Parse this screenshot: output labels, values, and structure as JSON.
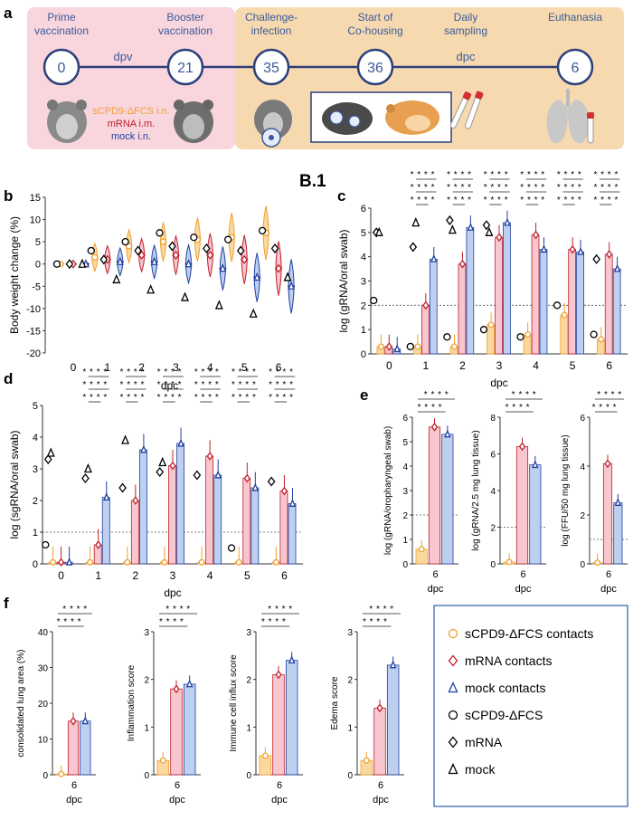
{
  "colors": {
    "orange": "#F0A030",
    "red": "#C0202A",
    "blue": "#2040A0",
    "pink_fill": "#F7C6CF",
    "blue_fill": "#BDD0F0",
    "orange_fill": "#FAD9A0",
    "timeline_pink": "#F9D5DE",
    "timeline_peach": "#F7D9B0",
    "timeline_line": "#2B3F7A",
    "text_blue": "#3A5A9A"
  },
  "panel_labels": {
    "a": "a",
    "b": "b",
    "b1": "B.1",
    "c": "c",
    "d": "d",
    "e": "e",
    "f": "f"
  },
  "timeline": {
    "events": [
      {
        "label": "Prime\nvaccination",
        "day": "0"
      },
      {
        "label": "Booster\nvaccination",
        "day": "21"
      },
      {
        "label": "Challenge-\ninfection",
        "day": "35"
      },
      {
        "label": "Start of\nCo-housing",
        "day": "36"
      },
      {
        "label": "Daily\nsampling",
        "day": ""
      },
      {
        "label": "Euthanasia",
        "day": "6"
      }
    ],
    "dpv": "dpv",
    "dpc": "dpc",
    "groups": [
      "sCPD9-ΔFCS i.n.",
      "mRNA i.m.",
      "mock i.n."
    ]
  },
  "sig": {
    "s4": "* * * *",
    "s3": "* * *",
    "s2": "* *"
  },
  "chart_data": [
    {
      "id": "b",
      "type": "violin",
      "title": "",
      "xlabel": "dpc",
      "ylabel": "Body weight change (%)",
      "ylim": [
        -20,
        15
      ],
      "yticks": [
        -20,
        -15,
        -10,
        -5,
        0,
        5,
        10,
        15
      ],
      "categories": [
        "0",
        "1",
        "2",
        "3",
        "4",
        "5",
        "6"
      ],
      "series": [
        {
          "name": "sCPD9-ΔFCS contacts",
          "medians": [
            0,
            1.5,
            4.0,
            5.0,
            5.5,
            6.0,
            7.0
          ]
        },
        {
          "name": "mRNA contacts",
          "medians": [
            0,
            1.0,
            2.0,
            2.0,
            2.0,
            1.0,
            -1.0
          ]
        },
        {
          "name": "mock contacts",
          "medians": [
            0,
            0.5,
            0.5,
            0.0,
            -1.0,
            -3.0,
            -5.0
          ]
        }
      ],
      "donors": [
        {
          "name": "sCPD9-ΔFCS",
          "values": [
            0,
            3,
            5,
            7,
            6,
            5.5,
            7.5
          ]
        },
        {
          "name": "mRNA",
          "values": [
            0,
            1,
            3,
            4,
            3.5,
            3,
            3.5
          ]
        },
        {
          "name": "mock",
          "values": [
            0,
            -3.5,
            -5.8,
            -7.5,
            -9.3,
            -11.2,
            -3
          ]
        }
      ]
    },
    {
      "id": "c",
      "type": "bar",
      "xlabel": "dpc",
      "ylabel": "log (gRNA/oral swab)",
      "ylim": [
        0,
        6
      ],
      "yticks": [
        0,
        1,
        2,
        3,
        4,
        5,
        6
      ],
      "threshold": 2,
      "categories": [
        "0",
        "1",
        "2",
        "3",
        "4",
        "5",
        "6"
      ],
      "series": [
        {
          "name": "sCPD9-ΔFCS contacts",
          "values": [
            0.3,
            0.3,
            0.3,
            1.2,
            0.8,
            1.6,
            0.6
          ]
        },
        {
          "name": "mRNA contacts",
          "values": [
            0.3,
            2.0,
            3.7,
            4.8,
            4.9,
            4.3,
            4.1
          ]
        },
        {
          "name": "mock contacts",
          "values": [
            0.2,
            3.9,
            5.2,
            5.4,
            4.3,
            4.2,
            3.5
          ]
        }
      ],
      "donors": [
        {
          "name": "sCPD9-ΔFCS",
          "values": [
            2.2,
            0.3,
            0.7,
            1.0,
            0.7,
            2.0,
            0.8
          ]
        },
        {
          "name": "mRNA",
          "values": [
            5.0,
            4.4,
            5.5,
            5.3,
            null,
            null,
            3.9
          ]
        },
        {
          "name": "mock",
          "values": [
            5.0,
            5.4,
            5.1,
            5.0,
            null,
            null,
            null
          ]
        }
      ]
    },
    {
      "id": "d",
      "type": "bar",
      "xlabel": "dpc",
      "ylabel": "log (sgRNA/oral swab)",
      "ylim": [
        0,
        5
      ],
      "yticks": [
        0,
        1,
        2,
        3,
        4,
        5
      ],
      "threshold": 1,
      "categories": [
        "0",
        "1",
        "2",
        "3",
        "4",
        "5",
        "6"
      ],
      "series": [
        {
          "name": "sCPD9-ΔFCS contacts",
          "values": [
            0.05,
            0.05,
            0.05,
            0.05,
            0.05,
            0.05,
            0.05
          ]
        },
        {
          "name": "mRNA contacts",
          "values": [
            0.05,
            0.6,
            2.0,
            3.1,
            3.4,
            2.7,
            2.3
          ]
        },
        {
          "name": "mock contacts",
          "values": [
            0.05,
            2.1,
            3.6,
            3.8,
            2.8,
            2.4,
            1.9
          ]
        }
      ],
      "donors": [
        {
          "name": "sCPD9-ΔFCS",
          "values": [
            0.6,
            null,
            null,
            null,
            null,
            0.5,
            null
          ]
        },
        {
          "name": "mRNA",
          "values": [
            3.3,
            2.7,
            2.4,
            2.9,
            2.8,
            null,
            2.6
          ]
        },
        {
          "name": "mock",
          "values": [
            3.5,
            3.0,
            3.9,
            3.2,
            null,
            null,
            null
          ]
        }
      ]
    },
    {
      "id": "e1",
      "type": "bar",
      "xlabel": "dpc",
      "ylabel": "log (gRNA/oropharyngeal swab)",
      "ylim": [
        0,
        6
      ],
      "yticks": [
        0,
        1,
        2,
        3,
        4,
        5,
        6
      ],
      "threshold": 2,
      "categories": [
        "6"
      ],
      "series": [
        {
          "name": "sCPD9-ΔFCS contacts",
          "values": [
            0.6
          ]
        },
        {
          "name": "mRNA contacts",
          "values": [
            5.6
          ]
        },
        {
          "name": "mock contacts",
          "values": [
            5.3
          ]
        }
      ]
    },
    {
      "id": "e2",
      "type": "bar",
      "xlabel": "dpc",
      "ylabel": "log (gRNA/2.5 mg lung tissue)",
      "ylim": [
        0,
        8
      ],
      "yticks": [
        0,
        2,
        4,
        6,
        8
      ],
      "threshold": 2,
      "categories": [
        "6"
      ],
      "series": [
        {
          "name": "sCPD9-ΔFCS contacts",
          "values": [
            0.1
          ]
        },
        {
          "name": "mRNA contacts",
          "values": [
            6.4
          ]
        },
        {
          "name": "mock contacts",
          "values": [
            5.4
          ]
        }
      ]
    },
    {
      "id": "e3",
      "type": "bar",
      "xlabel": "dpc",
      "ylabel": "log (FFU/50 mg lung tissue)",
      "ylim": [
        0,
        6
      ],
      "yticks": [
        0,
        2,
        4,
        6
      ],
      "threshold": 1,
      "categories": [
        "6"
      ],
      "series": [
        {
          "name": "sCPD9-ΔFCS contacts",
          "values": [
            0.05
          ]
        },
        {
          "name": "mRNA contacts",
          "values": [
            4.1
          ]
        },
        {
          "name": "mock contacts",
          "values": [
            2.5
          ]
        }
      ]
    },
    {
      "id": "f1",
      "type": "bar",
      "xlabel": "dpc",
      "ylabel": "consolidated lung area (%)",
      "ylim": [
        0,
        40
      ],
      "yticks": [
        0,
        10,
        20,
        30,
        40
      ],
      "categories": [
        "6"
      ],
      "series": [
        {
          "name": "sCPD9-ΔFCS contacts",
          "values": [
            0.2
          ]
        },
        {
          "name": "mRNA contacts",
          "values": [
            15
          ]
        },
        {
          "name": "mock contacts",
          "values": [
            15
          ]
        }
      ]
    },
    {
      "id": "f2",
      "type": "bar",
      "xlabel": "dpc",
      "ylabel": "Inflammation score",
      "ylim": [
        0,
        3
      ],
      "yticks": [
        0,
        1,
        2,
        3
      ],
      "categories": [
        "6"
      ],
      "series": [
        {
          "name": "sCPD9-ΔFCS contacts",
          "values": [
            0.3
          ]
        },
        {
          "name": "mRNA contacts",
          "values": [
            1.8
          ]
        },
        {
          "name": "mock contacts",
          "values": [
            1.9
          ]
        }
      ]
    },
    {
      "id": "f3",
      "type": "bar",
      "xlabel": "dpc",
      "ylabel": "Immune cell influx score",
      "ylim": [
        0,
        3
      ],
      "yticks": [
        0,
        1,
        2,
        3
      ],
      "categories": [
        "6"
      ],
      "series": [
        {
          "name": "sCPD9-ΔFCS contacts",
          "values": [
            0.4
          ]
        },
        {
          "name": "mRNA contacts",
          "values": [
            2.1
          ]
        },
        {
          "name": "mock contacts",
          "values": [
            2.4
          ]
        }
      ]
    },
    {
      "id": "f4",
      "type": "bar",
      "xlabel": "dpc",
      "ylabel": "Edema score",
      "ylim": [
        0,
        3
      ],
      "yticks": [
        0,
        1,
        2,
        3
      ],
      "categories": [
        "6"
      ],
      "series": [
        {
          "name": "sCPD9-ΔFCS contacts",
          "values": [
            0.3
          ]
        },
        {
          "name": "mRNA contacts",
          "values": [
            1.4
          ]
        },
        {
          "name": "mock contacts",
          "values": [
            2.3
          ]
        }
      ]
    }
  ],
  "legend": [
    {
      "label": "sCPD9-ΔFCS contacts",
      "marker": "circle",
      "color": "#F0A030"
    },
    {
      "label": "mRNA contacts",
      "marker": "diamond",
      "color": "#C0202A"
    },
    {
      "label": "mock contacts",
      "marker": "triangle",
      "color": "#2040A0"
    },
    {
      "label": "sCPD9-ΔFCS",
      "marker": "circle",
      "color": "#000000"
    },
    {
      "label": "mRNA",
      "marker": "diamond",
      "color": "#000000"
    },
    {
      "label": "mock",
      "marker": "triangle",
      "color": "#000000"
    }
  ]
}
